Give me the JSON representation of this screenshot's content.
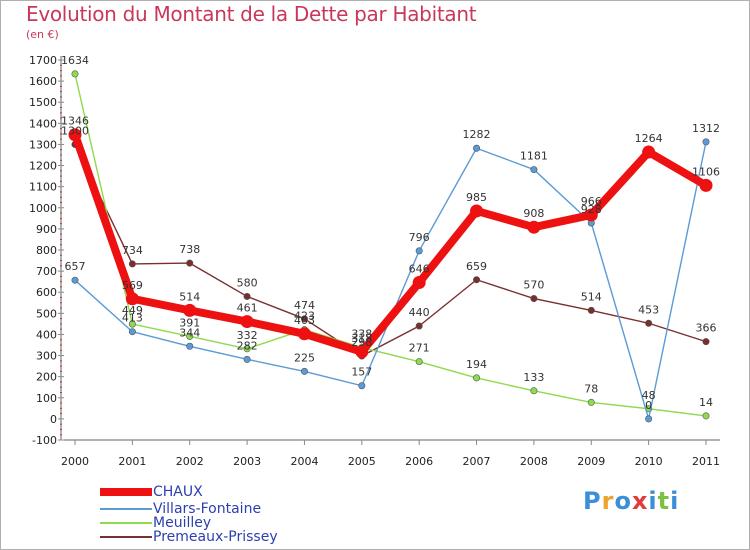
{
  "header": {
    "title": "Evolution du Montant de la Dette par Habitant",
    "unit": "(en €)"
  },
  "logo": {
    "text": "Proxiti",
    "letters": [
      "P",
      "r",
      "o",
      "x",
      "i",
      "t",
      "i"
    ],
    "colors": [
      "#3a8fd6",
      "#f0a32c",
      "#3a8fd6",
      "#e23b3b",
      "#3a8fd6",
      "#7cc242",
      "#3a8fd6"
    ]
  },
  "chart_data": {
    "type": "line",
    "title": "Evolution du Montant de la Dette par Habitant",
    "ylabel": "(en €)",
    "xlabel": "",
    "x": [
      "2000",
      "2001",
      "2002",
      "2003",
      "2004",
      "2005",
      "2006",
      "2007",
      "2008",
      "2009",
      "2010",
      "2011"
    ],
    "ylim": [
      -100,
      1700
    ],
    "yticks": [
      -100,
      0,
      100,
      200,
      300,
      400,
      500,
      600,
      700,
      800,
      900,
      1000,
      1100,
      1200,
      1300,
      1400,
      1500,
      1600,
      1700
    ],
    "grid": false,
    "legend_position": "bottom-left",
    "series": [
      {
        "name": "CHAUX",
        "color": "#ee1111",
        "values": [
          1346,
          569,
          514,
          461,
          403,
          318,
          646,
          985,
          908,
          966,
          1264,
          1106
        ]
      },
      {
        "name": "Villars-Fontaine",
        "color": "#5b9bd5",
        "values": [
          657,
          413,
          344,
          282,
          225,
          157,
          796,
          1282,
          1181,
          928,
          0,
          1312
        ]
      },
      {
        "name": "Meuilley",
        "color": "#8fda4f",
        "values": [
          1634,
          449,
          391,
          332,
          423,
          338,
          271,
          194,
          133,
          78,
          48,
          14
        ]
      },
      {
        "name": "Premeaux-Prissey",
        "color": "#7a2e2e",
        "values": [
          1300,
          734,
          738,
          580,
          474,
          298,
          440,
          659,
          570,
          514,
          453,
          366
        ]
      }
    ],
    "data_labels": [
      {
        "series": 0,
        "labels": [
          "1346",
          "569",
          "514",
          "461",
          "403",
          "318",
          "646",
          "985",
          "908",
          "966",
          "1264",
          "1106"
        ]
      },
      {
        "series": 1,
        "labels": [
          "657",
          "413",
          "344",
          "282",
          "225",
          "157",
          "796",
          "1282",
          "1181",
          "928",
          "0",
          "1312"
        ]
      },
      {
        "series": 2,
        "labels": [
          "1634",
          "449",
          "391",
          "332",
          "423",
          "338",
          "271",
          "194",
          "133",
          "78",
          "48",
          "14"
        ]
      },
      {
        "series": 3,
        "labels": [
          "1300",
          "734",
          "738",
          "580",
          "474",
          "298",
          "440",
          "659",
          "570",
          "514",
          "453",
          "366"
        ]
      }
    ]
  }
}
